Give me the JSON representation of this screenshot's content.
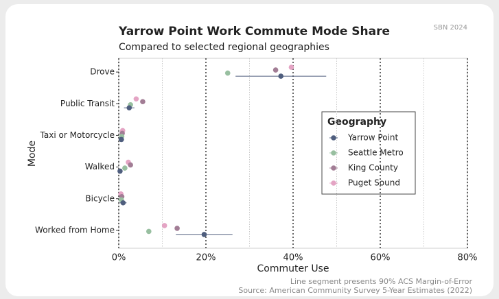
{
  "chart_data": {
    "type": "dot",
    "title": "Yarrow Point Work Commute Mode Share",
    "subtitle": "Compared to selected regional geographies",
    "badge": "SBN 2024",
    "x_label": "Commuter Use",
    "y_label": "Mode",
    "caption": [
      "Line segment presents 90% ACS Margin-of-Error",
      "Source: American Community Survey 5-Year Estimates (2022)"
    ],
    "legend_title": "Geography",
    "categories": [
      "Drove",
      "Public Transit",
      "Taxi or Motorcycle",
      "Walked",
      "Bicycle",
      "Worked from Home"
    ],
    "series": [
      {
        "name": "Yarrow Point",
        "color": "#4f5e7e",
        "values": [
          37.2,
          2.4,
          0.6,
          0.3,
          1.0,
          19.6
        ],
        "errors": [
          10.4,
          1.2,
          0.6,
          0.4,
          0.8,
          6.5
        ]
      },
      {
        "name": "Seattle Metro",
        "color": "#98bfa0",
        "values": [
          25.0,
          2.7,
          0.7,
          1.4,
          0.6,
          6.9
        ]
      },
      {
        "name": "King County",
        "color": "#a27d95",
        "values": [
          36.0,
          5.5,
          0.8,
          2.7,
          0.7,
          13.4
        ]
      },
      {
        "name": "Puget Sound",
        "color": "#e4a4c4",
        "values": [
          39.6,
          4.0,
          0.9,
          2.2,
          0.5,
          10.5
        ]
      }
    ],
    "xlim": [
      0,
      80
    ],
    "xticks": [
      {
        "value": 0,
        "label": "0%"
      },
      {
        "value": 20,
        "label": "20%"
      },
      {
        "value": 40,
        "label": "40%"
      },
      {
        "value": 60,
        "label": "60%"
      },
      {
        "value": 80,
        "label": "80%"
      }
    ],
    "grid": true
  }
}
